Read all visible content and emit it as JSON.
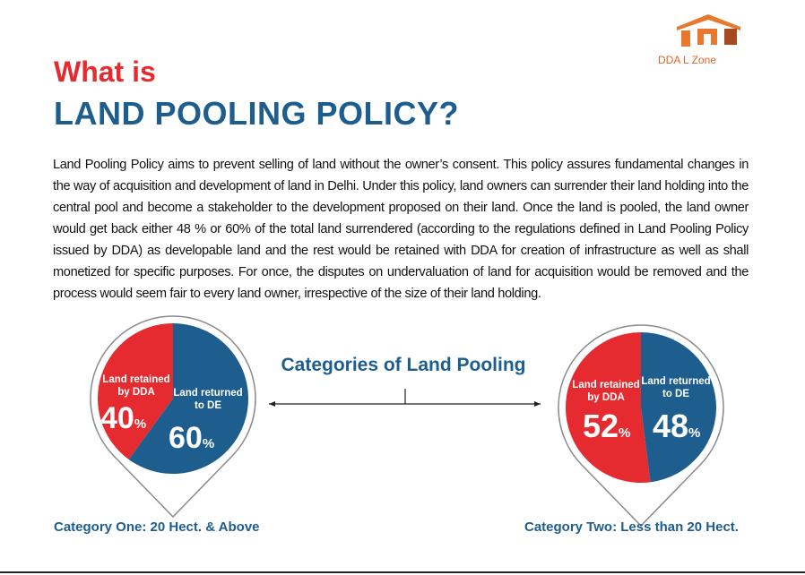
{
  "logo": {
    "text": "DDA L Zone"
  },
  "header": {
    "kicker": "What is",
    "title": "LAND POOLING POLICY?"
  },
  "body": "Land Pooling Policy aims to prevent selling of land without the owner’s consent. This policy assures fundamental changes in the way of acquisition and development of land in Delhi. Under this policy, land owners can surrender their land holding into the central pool and become a stakeholder to the development proposed on their land. Once the land is pooled, the land owner would get back either 48 % or 60% of the total land surrendered (according to the regulations defined in Land Pooling Policy issued by DDA) as developable land and the rest would be retained with DDA for creation of infrastructure as well as shall monetized for specific purposes. For once, the disputes on undervaluation of land for acquisition would be removed and the process would seem fair to every land owner, irrespective of the size of their land holding.",
  "center_label": "Categories of Land Pooling",
  "chart_data": [
    {
      "type": "pie",
      "title": "Category One: 20 Hect. & Above",
      "categories": [
        "Land retained by DDA",
        "Land returned to DE"
      ],
      "values": [
        40,
        60
      ],
      "unit": "%",
      "colors": [
        "#e52b2f",
        "#1d5e8f"
      ]
    },
    {
      "type": "pie",
      "title": "Category Two: Less than 20 Hect.",
      "categories": [
        "Land retained by DDA",
        "Land returned to DE"
      ],
      "values": [
        52,
        48
      ],
      "unit": "%",
      "colors": [
        "#e52b2f",
        "#1d5e8f"
      ]
    }
  ]
}
